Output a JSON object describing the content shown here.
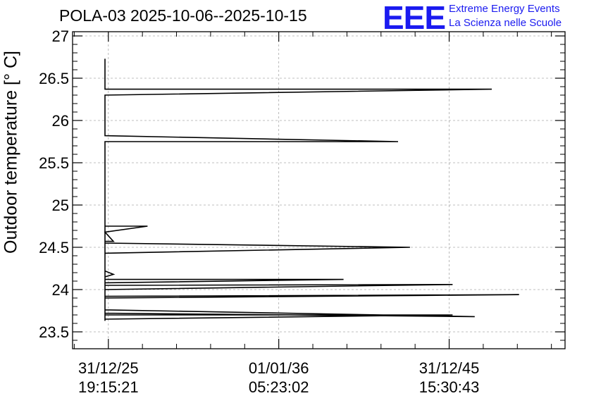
{
  "header": {
    "title": "POLA-03 2025-10-06--2025-10-15"
  },
  "logo": {
    "mark": "EEE",
    "line1": "Extreme Energy Events",
    "line2": "La Scienza nelle Scuole"
  },
  "colors": {
    "series": "#000000",
    "grid": "#aaaaaa",
    "logo": "#1b1bf0"
  },
  "chart_data": {
    "type": "line",
    "title": "POLA-03 2025-10-06--2025-10-15",
    "ylabel": "Outdoor temperature [° C]",
    "xlabel": "",
    "ylim": [
      23.3,
      27.05
    ],
    "xlim": [
      -2.1,
      26.8
    ],
    "x_unit": "years since 31/12/25 19:15:21",
    "grid": true,
    "y_ticks": [
      23.5,
      24,
      24.5,
      25,
      25.5,
      26,
      26.5,
      27
    ],
    "y_tick_labels": [
      "23.5",
      "24",
      "24.5",
      "25",
      "25.5",
      "26",
      "26.5",
      "27"
    ],
    "x_ticks": [
      {
        "value": 0,
        "line1": "31/12/25",
        "line2": "19:15:21"
      },
      {
        "value": 10,
        "line1": "01/01/36",
        "line2": "05:23:02"
      },
      {
        "value": 20,
        "line1": "31/12/45",
        "line2": "15:30:43"
      }
    ],
    "series": [
      {
        "x": [
          -0.2,
          -0.2,
          -0.2,
          22.5,
          -0.2,
          -0.2,
          17,
          -0.2,
          -0.2,
          2.3,
          -0.2,
          0.3,
          -0.2,
          -0.2,
          17.7,
          -0.2,
          -0.2,
          0.3,
          -0.2,
          -0.2,
          13.8,
          -0.2,
          -0.2,
          20.2,
          -0.2,
          -0.2,
          24.1,
          -0.2,
          -0.2,
          21.5,
          -0.2,
          -0.2,
          20.2,
          -0.2,
          -0.2,
          -0.2
        ],
        "y": [
          26.73,
          26.55,
          26.37,
          26.37,
          26.3,
          25.82,
          25.75,
          25.75,
          24.75,
          24.75,
          24.68,
          24.57,
          24.57,
          24.55,
          24.5,
          24.43,
          24.22,
          24.18,
          24.15,
          24.12,
          24.12,
          24.08,
          24.05,
          24.06,
          24.0,
          23.92,
          23.94,
          23.9,
          23.76,
          23.68,
          23.72,
          23.7,
          23.7,
          23.65,
          23.63,
          24.95
        ]
      }
    ]
  }
}
